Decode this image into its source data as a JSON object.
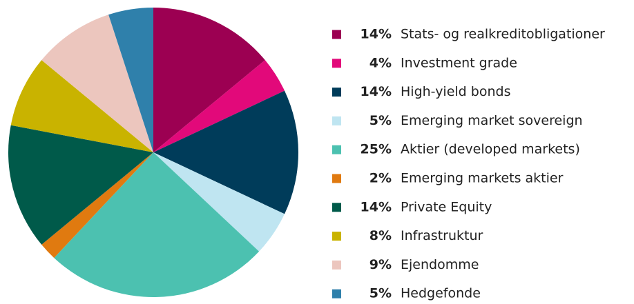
{
  "chart_data": {
    "type": "pie",
    "categories": [
      "Stats- og realkreditobligationer",
      "Investment grade",
      "High-yield bonds",
      "Emerging market sovereign",
      "Aktier (developed markets)",
      "Emerging markets aktier",
      "Private Equity",
      "Infrastruktur",
      "Ejendomme",
      "Hedgefonde"
    ],
    "values": [
      14,
      4,
      14,
      5,
      25,
      2,
      14,
      8,
      9,
      5
    ],
    "value_labels": [
      "14%",
      "4%",
      "14%",
      "5%",
      "25%",
      "2%",
      "14%",
      "8%",
      "9%",
      "5%"
    ],
    "colors": [
      "#9c0052",
      "#e2097a",
      "#003c5a",
      "#bfe5f1",
      "#4cc1b0",
      "#e07a10",
      "#005a4a",
      "#c9b300",
      "#ecc6be",
      "#2f80ab"
    ],
    "legend": "right"
  }
}
